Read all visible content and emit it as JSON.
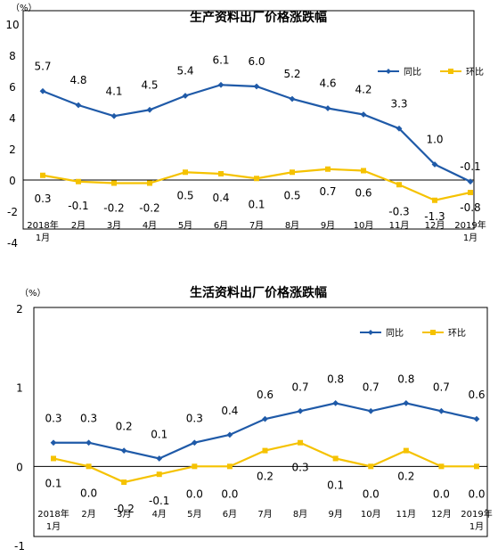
{
  "chart_data": [
    {
      "type": "line",
      "title": "生产资料出厂价格涨跌幅",
      "unit_label": "（%）",
      "ylim": [
        -4,
        10
      ],
      "yticks": [
        -4,
        -2,
        0,
        2,
        4,
        6,
        8,
        10
      ],
      "categories": [
        "2018年\n1月",
        "2月",
        "3月",
        "4月",
        "5月",
        "6月",
        "7月",
        "8月",
        "9月",
        "10月",
        "11月",
        "12月",
        "2019年\n1月"
      ],
      "series": [
        {
          "name": "同比",
          "color": "#1f5aa8",
          "values": [
            5.7,
            4.8,
            4.1,
            4.5,
            5.4,
            6.1,
            6.0,
            5.2,
            4.6,
            4.2,
            3.3,
            1.0,
            -0.1
          ],
          "labels": [
            "5.7",
            "4.8",
            "4.1",
            "4.5",
            "5.4",
            "6.1",
            "6.0",
            "5.2",
            "4.6",
            "4.2",
            "3.3",
            "1.0",
            "-0.1"
          ]
        },
        {
          "name": "环比",
          "color": "#f5c200",
          "values": [
            0.3,
            -0.1,
            -0.2,
            -0.2,
            0.5,
            0.4,
            0.1,
            0.5,
            0.7,
            0.6,
            -0.3,
            -1.3,
            -0.8
          ],
          "labels": [
            "0.3",
            "-0.1",
            "-0.2",
            "-0.2",
            "0.5",
            "0.4",
            "0.1",
            "0.5",
            "0.7",
            "0.6",
            "-0.3",
            "-1.3",
            "-0.8"
          ]
        }
      ],
      "legend": "right, upper area",
      "grid": false
    },
    {
      "type": "line",
      "title": "生活资料出厂价格涨跌幅",
      "unit_label": "（%）",
      "ylim": [
        -1,
        2
      ],
      "yticks": [
        -1,
        0,
        1,
        2
      ],
      "categories": [
        "2018年\n1月",
        "2月",
        "3月",
        "4月",
        "5月",
        "6月",
        "7月",
        "8月",
        "9月",
        "10月",
        "11月",
        "12月",
        "2019年\n1月"
      ],
      "series": [
        {
          "name": "同比",
          "color": "#1f5aa8",
          "values": [
            0.3,
            0.3,
            0.2,
            0.1,
            0.3,
            0.4,
            0.6,
            0.7,
            0.8,
            0.7,
            0.8,
            0.7,
            0.6
          ],
          "labels": [
            "0.3",
            "0.3",
            "0.2",
            "0.1",
            "0.3",
            "0.4",
            "0.6",
            "0.7",
            "0.8",
            "0.7",
            "0.8",
            "0.7",
            "0.6"
          ]
        },
        {
          "name": "环比",
          "color": "#f5c200",
          "values": [
            0.1,
            0.0,
            -0.2,
            -0.1,
            0.0,
            0.0,
            0.2,
            0.3,
            0.1,
            0.0,
            0.2,
            0.0,
            0.0
          ],
          "labels": [
            "0.1",
            "0.0",
            "-0.2",
            "-0.1",
            "0.0",
            "0.0",
            "0.2",
            "0.3",
            "0.1",
            "0.0",
            "0.2",
            "0.0",
            "0.0"
          ]
        }
      ],
      "legend": "right, upper area",
      "grid": false
    }
  ]
}
